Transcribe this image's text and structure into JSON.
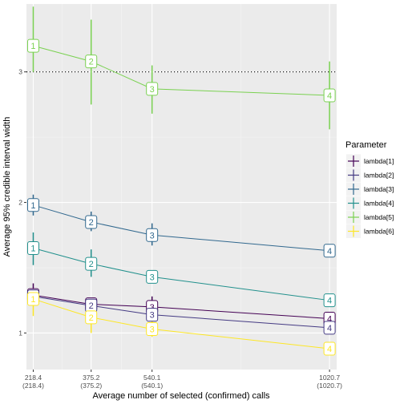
{
  "chart_data": {
    "type": "line",
    "title": "",
    "xlabel": "Average number of selected (confirmed) calls",
    "ylabel": "Average 95% credible interval width",
    "x": [
      218.4,
      375.2,
      540.1,
      1020.7
    ],
    "x_tick_labels": [
      [
        "218.4",
        "(218.4)"
      ],
      [
        "375.2",
        "(375.2)"
      ],
      [
        "540.1",
        "(540.1)"
      ],
      [
        "1020.7",
        "(1020.7)"
      ]
    ],
    "y_ticks": [
      1,
      2,
      3
    ],
    "xlim": [
      200,
      1040
    ],
    "ylim": [
      0.72,
      3.52
    ],
    "reference_line": {
      "y": 3,
      "style": "dotted"
    },
    "point_labels": [
      "1",
      "2",
      "3",
      "4"
    ],
    "legend": {
      "title": "Parameter",
      "position": "right"
    },
    "series": [
      {
        "name": "lambda[1]",
        "color": "#440154",
        "values": [
          1.29,
          1.22,
          1.2,
          1.11
        ],
        "lower": [
          1.24,
          1.19,
          1.14,
          1.08
        ],
        "upper": [
          1.38,
          1.25,
          1.28,
          1.15
        ]
      },
      {
        "name": "lambda[2]",
        "color": "#443A83",
        "values": [
          1.28,
          1.21,
          1.14,
          1.04
        ],
        "lower": [
          1.24,
          1.18,
          1.1,
          1.01
        ],
        "upper": [
          1.33,
          1.24,
          1.18,
          1.07
        ]
      },
      {
        "name": "lambda[3]",
        "color": "#31688E",
        "values": [
          1.98,
          1.85,
          1.75,
          1.63
        ],
        "lower": [
          1.9,
          1.78,
          1.67,
          1.61
        ],
        "upper": [
          2.06,
          1.93,
          1.84,
          1.65
        ]
      },
      {
        "name": "lambda[4]",
        "color": "#21908C",
        "values": [
          1.65,
          1.53,
          1.43,
          1.25
        ],
        "lower": [
          1.52,
          1.43,
          1.4,
          1.23
        ],
        "upper": [
          1.77,
          1.64,
          1.46,
          1.28
        ]
      },
      {
        "name": "lambda[5]",
        "color": "#7AD151",
        "values": [
          3.2,
          3.08,
          2.87,
          2.82
        ],
        "lower": [
          3.0,
          2.75,
          2.68,
          2.56
        ],
        "upper": [
          3.5,
          3.4,
          3.05,
          3.08
        ]
      },
      {
        "name": "lambda[6]",
        "color": "#FDE725",
        "values": [
          1.26,
          1.12,
          1.03,
          0.88
        ],
        "lower": [
          1.13,
          1.0,
          0.97,
          0.85
        ],
        "upper": [
          1.34,
          1.22,
          1.09,
          0.91
        ]
      }
    ]
  }
}
